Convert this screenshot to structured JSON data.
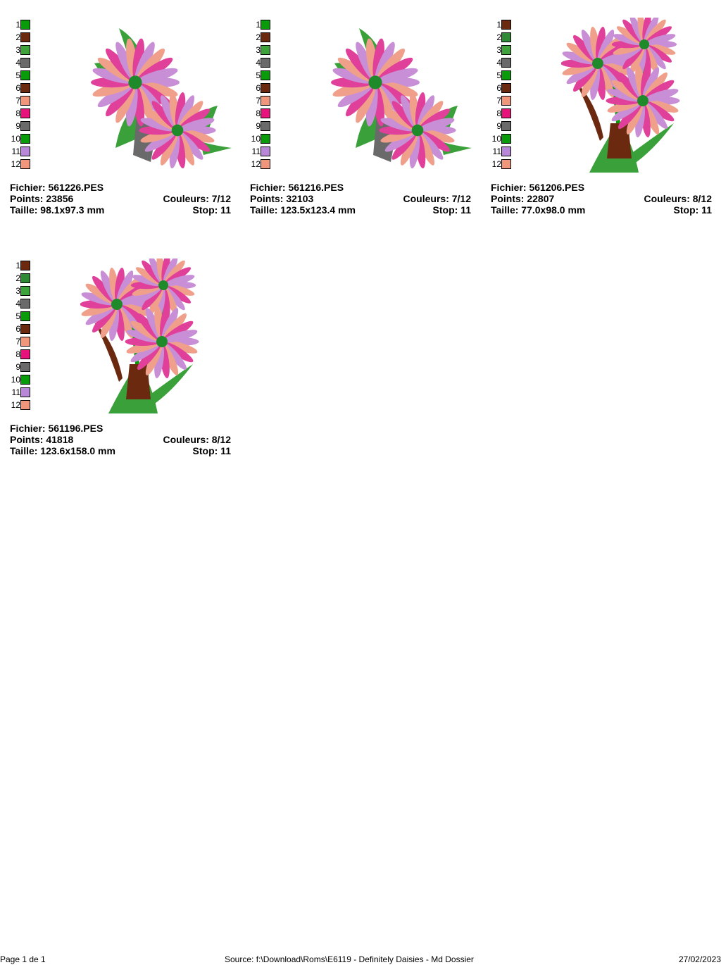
{
  "designs": [
    {
      "file_label": "Fichier: 561226.PES",
      "points_label": "Points: 23856",
      "colors_label": "Couleurs: 7/12",
      "size_label": "Taille: 98.1x97.3 mm",
      "stop_label": "Stop: 11",
      "palette": [
        "#0a9b0a",
        "#6b2a10",
        "#3ea33a",
        "#6a6a6a",
        "#0a9b0a",
        "#6b2a10",
        "#f0967a",
        "#e8127c",
        "#6a6a6a",
        "#0a9b0a",
        "#b887d8",
        "#f0967a"
      ],
      "artwork": "corner-daisies"
    },
    {
      "file_label": "Fichier: 561216.PES",
      "points_label": "Points: 32103",
      "colors_label": "Couleurs: 7/12",
      "size_label": "Taille: 123.5x123.4 mm",
      "stop_label": "Stop: 11",
      "palette": [
        "#0a9b0a",
        "#6b2a10",
        "#3ea33a",
        "#6a6a6a",
        "#0a9b0a",
        "#6b2a10",
        "#f0967a",
        "#e8127c",
        "#6a6a6a",
        "#0a9b0a",
        "#b887d8",
        "#f0967a"
      ],
      "artwork": "corner-daisies"
    },
    {
      "file_label": "Fichier: 561206.PES",
      "points_label": "Points: 22807",
      "colors_label": "Couleurs: 8/12",
      "size_label": "Taille: 77.0x98.0 mm",
      "stop_label": "Stop: 11",
      "palette": [
        "#6b2a10",
        "#2f8a35",
        "#3ea33a",
        "#6a6a6a",
        "#0a9b0a",
        "#6b2a10",
        "#f0967a",
        "#e8127c",
        "#6a6a6a",
        "#0a9b0a",
        "#b887d8",
        "#f0967a"
      ],
      "artwork": "bouquet-daisies"
    },
    {
      "file_label": "Fichier: 561196.PES",
      "points_label": "Points: 41818",
      "colors_label": "Couleurs: 8/12",
      "size_label": "Taille: 123.6x158.0 mm",
      "stop_label": "Stop: 11",
      "palette": [
        "#6b2a10",
        "#2f8a35",
        "#3ea33a",
        "#6a6a6a",
        "#0a9b0a",
        "#6b2a10",
        "#f0967a",
        "#e8127c",
        "#6a6a6a",
        "#0a9b0a",
        "#b887d8",
        "#f0967a"
      ],
      "artwork": "bouquet-daisies"
    }
  ],
  "footer": {
    "page": "Page 1 de 1",
    "source": "Source: f:\\Download\\Roms\\E6119 - Definitely Daisies - Md Dossier",
    "date": "27/02/2023"
  }
}
